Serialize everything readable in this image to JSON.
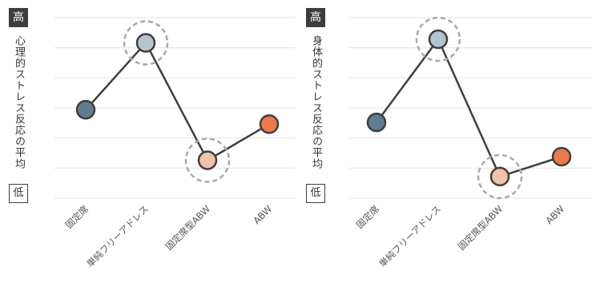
{
  "chart_data": [
    {
      "type": "line",
      "ylabel": "心理的ストレス反応の平均値",
      "y_high_label": "高",
      "y_low_label": "低",
      "categories": [
        "固定席",
        "単純フリーアドレス",
        "固定席型ABW",
        "ABW"
      ],
      "values": [
        0.49,
        0.86,
        0.21,
        0.41
      ],
      "highlighted": [
        "単純フリーアドレス",
        "固定席型ABW"
      ],
      "ylim": [
        0,
        1
      ],
      "grid": true,
      "colors": [
        "#5f7d8f",
        "#b4c5cd",
        "#f2c3a8",
        "#ec7a48"
      ]
    },
    {
      "type": "line",
      "ylabel": "身体的ストレス反応の平均値",
      "y_high_label": "高",
      "y_low_label": "低",
      "categories": [
        "固定席",
        "単純フリーアドレス",
        "固定席型ABW",
        "ABW"
      ],
      "values": [
        0.42,
        0.88,
        0.12,
        0.23
      ],
      "highlighted": [
        "単純フリーアドレス",
        "固定席型ABW"
      ],
      "ylim": [
        0,
        1
      ],
      "grid": true,
      "colors": [
        "#5f7d8f",
        "#b4c5cd",
        "#f2c3a8",
        "#ec7a48"
      ]
    }
  ]
}
